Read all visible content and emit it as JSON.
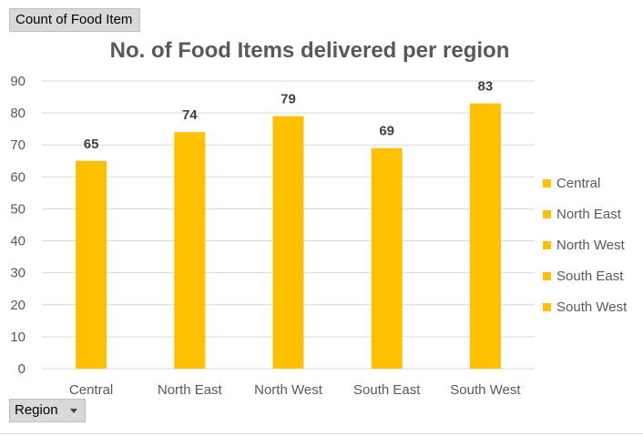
{
  "pivot": {
    "value_field": "Count of Food Item",
    "row_field": "Region"
  },
  "colors": {
    "bar": "#ffc000",
    "grid": "#d9d9d9",
    "text": "#595959",
    "label": "#404040"
  },
  "icons": {
    "field_dropdown": "chevron-down-icon"
  },
  "chart_data": {
    "type": "bar",
    "title": "No. of Food Items delivered per region",
    "xlabel": "",
    "ylabel": "",
    "categories": [
      "Central",
      "North East",
      "North West",
      "South East",
      "South West"
    ],
    "values": [
      65,
      74,
      79,
      69,
      83
    ],
    "ylim": [
      0,
      90
    ],
    "yticks": [
      "0",
      "10",
      "20",
      "30",
      "40",
      "50",
      "60",
      "70",
      "80",
      "90"
    ],
    "grid": true,
    "legend_position": "right",
    "legend": [
      "Central",
      "North East",
      "North West",
      "South East",
      "South West"
    ]
  }
}
